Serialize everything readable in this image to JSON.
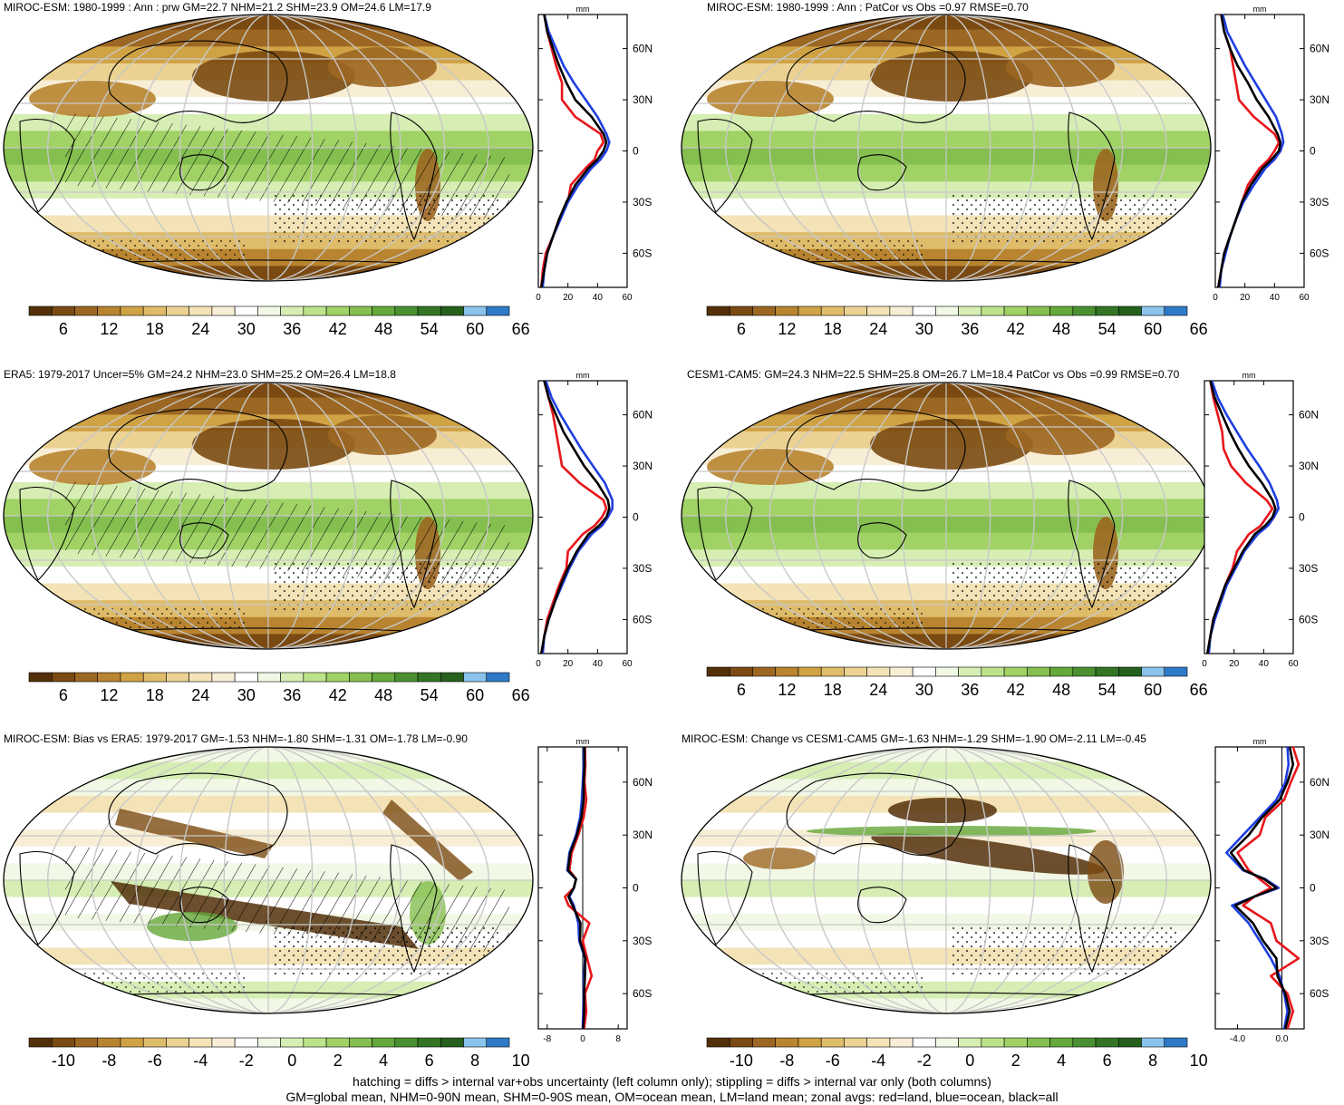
{
  "panels": [
    {
      "title": "MIROC-ESM: 1980-1999 : Ann : prw GM=22.7 NHM=21.2 SHM=23.9 OM=24.6 LM=17.9",
      "kind": "abs",
      "hatch": true,
      "stipple": true
    },
    {
      "title": "MIROC-ESM: 1980-1999 : Ann : PatCor vs Obs =0.97 RMSE=0.70",
      "kind": "abs",
      "hatch": false,
      "stipple": true
    },
    {
      "title": "ERA5: 1979-2017 Uncer=5% GM=24.2 NHM=23.0 SHM=25.2 OM=26.4 LM=18.8",
      "kind": "abs",
      "hatch": true,
      "stipple": true
    },
    {
      "title": "CESM1-CAM5: GM=24.3 NHM=22.5 SHM=25.8 OM=26.7 LM=18.4 PatCor vs Obs =0.99 RMSE=0.70",
      "kind": "abs",
      "hatch": false,
      "stipple": true
    },
    {
      "title": "MIROC-ESM: Bias vs ERA5: 1979-2017 GM=-1.53 NHM=-1.80 SHM=-1.31 OM=-1.78 LM=-0.90",
      "kind": "diff",
      "hatch": true,
      "stipple": true
    },
    {
      "title": "MIROC-ESM: Change vs CESM1-CAM5 GM=-1.63 NHM=-1.29 SHM=-1.90 OM=-2.11 LM=-0.45",
      "kind": "diff",
      "hatch": false,
      "stipple": true
    }
  ],
  "colorbars": {
    "abs": {
      "labels": [
        "6",
        "12",
        "18",
        "24",
        "30",
        "36",
        "42",
        "48",
        "54",
        "60",
        "66"
      ],
      "colors": [
        "#54300a",
        "#7a4a12",
        "#9c6722",
        "#b88430",
        "#cfa244",
        "#dfbc6a",
        "#ebd293",
        "#f3e3b6",
        "#f8eed6",
        "#ffffff",
        "#f2f8e6",
        "#d6eeb3",
        "#bce38a",
        "#a0d266",
        "#84bf4f",
        "#65a83b",
        "#4a9030",
        "#337524",
        "#25601c",
        "#8ac4ec",
        "#2f7ac8"
      ]
    },
    "diff": {
      "labels": [
        "-10",
        "-8",
        "-6",
        "-4",
        "-2",
        "0",
        "2",
        "4",
        "6",
        "8",
        "10"
      ],
      "colors": [
        "#54300a",
        "#7a4a12",
        "#9c6722",
        "#b88430",
        "#cfa244",
        "#dfbc6a",
        "#ebd293",
        "#f3e3b6",
        "#f8eed6",
        "#ffffff",
        "#f2f8e6",
        "#d6eeb3",
        "#bce38a",
        "#a0d266",
        "#84bf4f",
        "#65a83b",
        "#4a9030",
        "#337524",
        "#25601c",
        "#8ac4ec",
        "#2f7ac8"
      ]
    }
  },
  "chart_data": [
    {
      "type": "line",
      "title": "",
      "unit": "mm",
      "xlim": [
        0,
        60
      ],
      "xticks": [
        "0",
        "20",
        "40",
        "60"
      ],
      "yticks": [
        "60N",
        "30N",
        "0",
        "30S",
        "60S"
      ],
      "lat": [
        80,
        70,
        60,
        50,
        40,
        30,
        20,
        10,
        5,
        0,
        -5,
        -10,
        -20,
        -30,
        -40,
        -50,
        -60,
        -70,
        -80
      ],
      "series": [
        {
          "name": "land",
          "color": "#e8161b",
          "values": [
            4,
            6,
            9,
            12,
            16,
            16,
            25,
            42,
            44,
            40,
            38,
            32,
            22,
            20,
            14,
            10,
            5,
            3,
            2
          ]
        },
        {
          "name": "ocean",
          "color": "#1f3fe0",
          "values": [
            4,
            7,
            12,
            17,
            24,
            32,
            40,
            46,
            48,
            46,
            42,
            36,
            27,
            20,
            15,
            10,
            6,
            4,
            3
          ]
        },
        {
          "name": "all",
          "color": "#000000",
          "values": [
            4,
            6,
            10,
            14,
            19,
            25,
            36,
            44,
            46,
            44,
            40,
            34,
            25,
            19,
            14,
            10,
            6,
            4,
            2
          ]
        }
      ]
    },
    {
      "type": "line",
      "title": "",
      "unit": "mm",
      "xlim": [
        0,
        60
      ],
      "xticks": [
        "0",
        "20",
        "40",
        "60"
      ],
      "yticks": [
        "60N",
        "30N",
        "0",
        "30S",
        "60S"
      ],
      "lat": [
        80,
        70,
        60,
        50,
        40,
        30,
        20,
        10,
        5,
        0,
        -5,
        -10,
        -20,
        -30,
        -40,
        -50,
        -60,
        -70,
        -80
      ],
      "series": [
        {
          "name": "land",
          "color": "#e8161b",
          "values": [
            4,
            6,
            10,
            12,
            14,
            16,
            26,
            40,
            43,
            40,
            36,
            30,
            22,
            18,
            14,
            10,
            6,
            4,
            2
          ]
        },
        {
          "name": "ocean",
          "color": "#1f3fe0",
          "values": [
            5,
            8,
            14,
            20,
            27,
            34,
            41,
            45,
            46,
            44,
            40,
            34,
            26,
            19,
            14,
            10,
            7,
            4,
            3
          ]
        },
        {
          "name": "all",
          "color": "#000000",
          "values": [
            4,
            6,
            10,
            15,
            22,
            28,
            36,
            42,
            44,
            43,
            38,
            32,
            24,
            18,
            14,
            10,
            6,
            4,
            2
          ]
        }
      ]
    },
    {
      "type": "line",
      "title": "",
      "unit": "mm",
      "xlim": [
        0,
        60
      ],
      "xticks": [
        "0",
        "20",
        "40",
        "60"
      ],
      "yticks": [
        "60N",
        "30N",
        "0",
        "30S",
        "60S"
      ],
      "lat": [
        80,
        70,
        60,
        50,
        40,
        30,
        20,
        10,
        5,
        0,
        -5,
        -10,
        -20,
        -30,
        -40,
        -50,
        -60,
        -70,
        -80
      ],
      "series": [
        {
          "name": "land",
          "color": "#e8161b",
          "values": [
            4,
            7,
            10,
            12,
            14,
            16,
            28,
            44,
            46,
            43,
            38,
            30,
            20,
            19,
            14,
            10,
            6,
            4,
            2
          ]
        },
        {
          "name": "ocean",
          "color": "#1f3fe0",
          "values": [
            5,
            9,
            15,
            22,
            29,
            37,
            45,
            50,
            50,
            47,
            43,
            36,
            27,
            21,
            16,
            11,
            7,
            4,
            3
          ]
        },
        {
          "name": "all",
          "color": "#000000",
          "values": [
            4,
            7,
            12,
            17,
            24,
            31,
            40,
            47,
            48,
            46,
            41,
            34,
            26,
            20,
            15,
            11,
            7,
            4,
            2
          ]
        }
      ]
    },
    {
      "type": "line",
      "title": "",
      "unit": "mm",
      "xlim": [
        0,
        60
      ],
      "xticks": [
        "0",
        "20",
        "40",
        "60"
      ],
      "yticks": [
        "60N",
        "30N",
        "0",
        "30S",
        "60S"
      ],
      "lat": [
        80,
        70,
        60,
        50,
        40,
        30,
        20,
        10,
        5,
        0,
        -5,
        -10,
        -20,
        -30,
        -40,
        -50,
        -60,
        -70,
        -80
      ],
      "series": [
        {
          "name": "land",
          "color": "#e8161b",
          "values": [
            4,
            6,
            9,
            12,
            13,
            18,
            28,
            42,
            46,
            42,
            38,
            30,
            22,
            19,
            14,
            10,
            6,
            4,
            2
          ]
        },
        {
          "name": "ocean",
          "color": "#1f3fe0",
          "values": [
            5,
            9,
            15,
            22,
            29,
            37,
            44,
            49,
            50,
            47,
            43,
            36,
            27,
            21,
            15,
            11,
            7,
            4,
            3
          ]
        },
        {
          "name": "all",
          "color": "#000000",
          "values": [
            4,
            7,
            12,
            17,
            23,
            30,
            39,
            46,
            48,
            46,
            41,
            34,
            26,
            20,
            14,
            10,
            6,
            4,
            2
          ]
        }
      ]
    },
    {
      "type": "line",
      "title": "",
      "unit": "mm",
      "xlim": [
        -10,
        10
      ],
      "xticks": [
        "-8",
        "0",
        "8"
      ],
      "yticks": [
        "60N",
        "30N",
        "0",
        "30S",
        "60S"
      ],
      "lat": [
        80,
        70,
        60,
        50,
        40,
        30,
        20,
        10,
        5,
        0,
        -5,
        -10,
        -20,
        -30,
        -40,
        -50,
        -60,
        -70,
        -80
      ],
      "series": [
        {
          "name": "land",
          "color": "#e8161b",
          "values": [
            0.5,
            0.6,
            0.4,
            0.8,
            0.2,
            -1.0,
            -2.5,
            -3.0,
            -1.5,
            -2.0,
            -4.0,
            -3.2,
            1.5,
            0.0,
            1.0,
            2.0,
            0.5,
            0.8,
            0.3
          ]
        },
        {
          "name": "ocean",
          "color": "#1f3fe0",
          "values": [
            0.3,
            0.2,
            0.0,
            -0.2,
            -0.6,
            -1.5,
            -3.0,
            -3.5,
            -1.5,
            -2.0,
            -3.0,
            -2.0,
            -1.0,
            -0.8,
            0.5,
            0.3,
            0.2,
            0.1,
            0.0
          ]
        },
        {
          "name": "all",
          "color": "#000000",
          "values": [
            0.4,
            0.4,
            0.2,
            0.2,
            -0.3,
            -1.3,
            -2.8,
            -3.3,
            -1.5,
            -2.0,
            -3.2,
            -2.3,
            -0.5,
            -0.6,
            0.6,
            0.5,
            0.3,
            0.3,
            0.1
          ]
        }
      ]
    },
    {
      "type": "line",
      "title": "",
      "unit": "mm",
      "xlim": [
        -6,
        2
      ],
      "xticks": [
        "-4.0",
        "0.0"
      ],
      "yticks": [
        "60N",
        "30N",
        "0",
        "30S",
        "60S"
      ],
      "lat": [
        80,
        70,
        60,
        50,
        40,
        30,
        20,
        10,
        5,
        0,
        -5,
        -10,
        -20,
        -30,
        -40,
        -50,
        -60,
        -70,
        -80
      ],
      "series": [
        {
          "name": "land",
          "color": "#e8161b",
          "values": [
            1.0,
            1.5,
            0.8,
            0.2,
            -1.5,
            -2.0,
            -4.0,
            -3.0,
            -2.0,
            -1.0,
            -2.5,
            -3.5,
            -1.0,
            -0.5,
            1.5,
            -1.0,
            0.5,
            1.0,
            0.5
          ]
        },
        {
          "name": "ocean",
          "color": "#1f3fe0",
          "values": [
            0.5,
            0.6,
            0.3,
            -0.5,
            -2.0,
            -3.5,
            -5.0,
            -3.5,
            -1.5,
            -0.3,
            -2.5,
            -4.5,
            -3.0,
            -2.0,
            -1.0,
            -0.2,
            0.2,
            0.5,
            0.2
          ]
        },
        {
          "name": "all",
          "color": "#000000",
          "values": [
            0.7,
            1.0,
            0.5,
            -0.2,
            -1.8,
            -3.0,
            -4.6,
            -3.4,
            -1.6,
            -0.5,
            -2.5,
            -4.2,
            -2.6,
            -1.7,
            -0.5,
            -0.4,
            0.3,
            0.7,
            0.3
          ]
        }
      ]
    }
  ],
  "footer": {
    "line1": "hatching = diffs > internal var+obs uncertainty (left column only); stippling = diffs > internal var only (both columns)",
    "line2": "GM=global mean, NHM=0-90N mean, SHM=0-90S mean, OM=ocean mean, LM=land mean; zonal avgs: red=land, blue=ocean, black=all"
  }
}
